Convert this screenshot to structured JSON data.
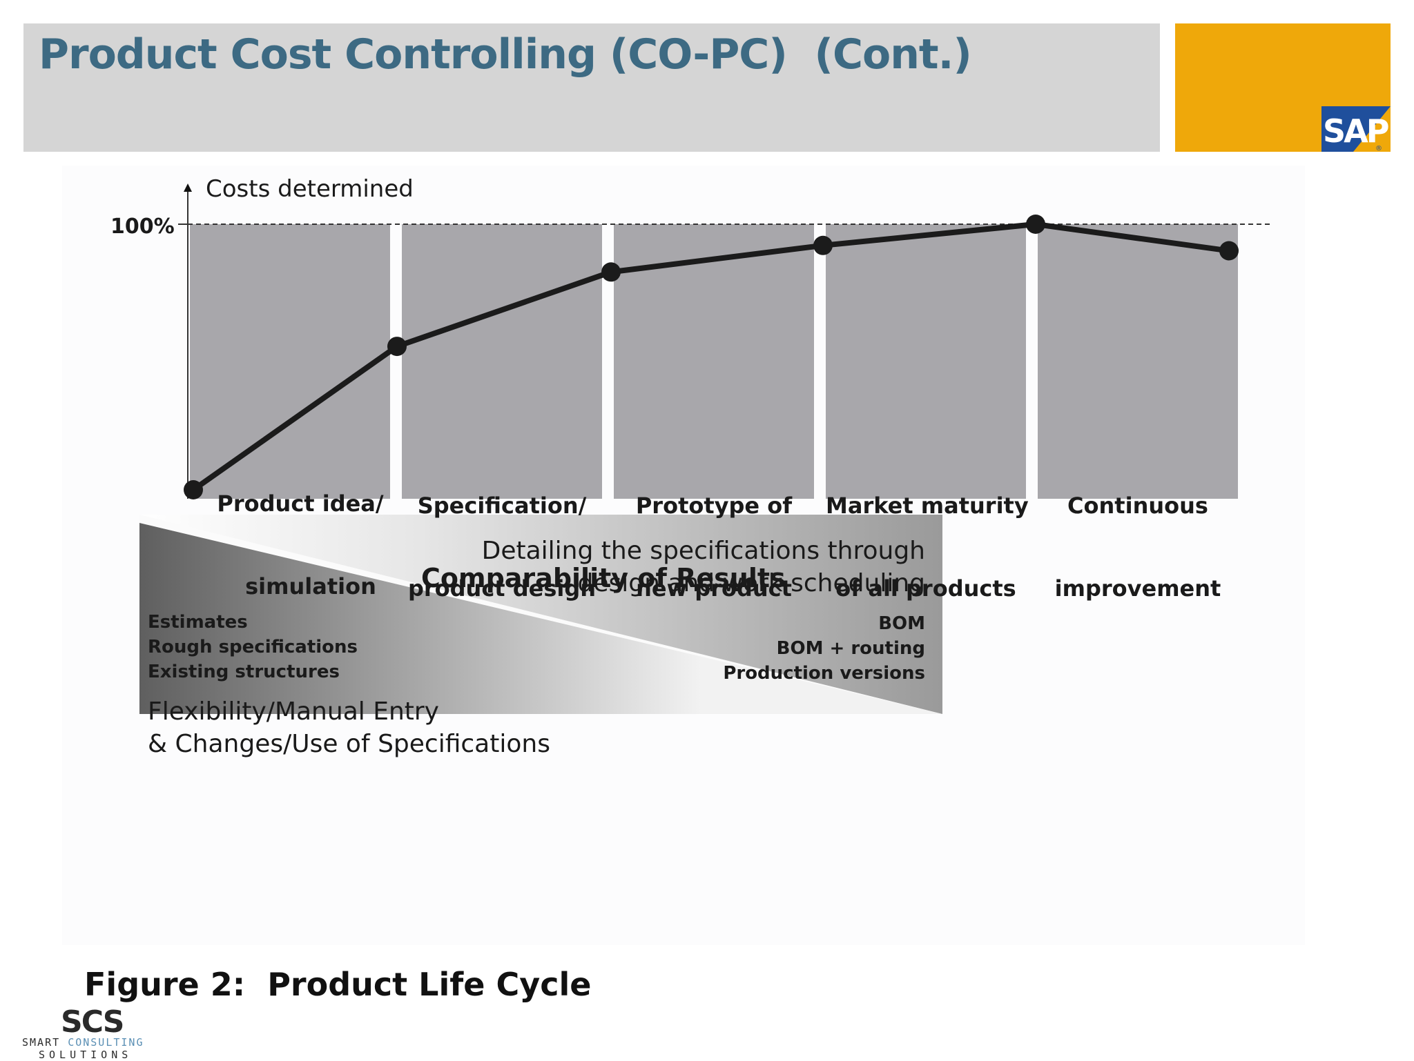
{
  "slide": {
    "title": "Product Cost Controlling (CO-PC)  (Cont.)",
    "brand_logo": "SAP",
    "colors": {
      "title_text": "#3d6a83",
      "title_bar": "#d5d5d5",
      "brand_block": "#efa80a",
      "sap_blue": "#1f4f9c"
    }
  },
  "diagram": {
    "y_axis_label": "Costs determined",
    "hundred_percent_label": "100%",
    "curve_levels_percent": [
      0,
      54,
      82,
      92,
      100,
      90
    ],
    "stages": [
      {
        "line1": "Product idea/",
        "line2": "simulation"
      },
      {
        "line1": "Specification/",
        "line2": "product design"
      },
      {
        "line1": "Prototype of",
        "line2": "new product"
      },
      {
        "line1": "Market maturity",
        "line2": "of all products"
      },
      {
        "line1": "Continuous",
        "line2": "improvement"
      }
    ],
    "cycle_label": "Comparability of Results",
    "right_heading_line1": "Detailing the specifications through",
    "right_heading_line2": "design and work scheduling",
    "right_items": [
      "BOM",
      "BOM + routing",
      "Production versions"
    ],
    "left_items": [
      "Estimates",
      "Rough specifications",
      "Existing structures"
    ],
    "left_heading_line1": "Flexibility/Manual Entry",
    "left_heading_line2": "& Changes/Use of Specifications"
  },
  "figure_caption": "Figure 2:  Product Life Cycle",
  "footer_logo": {
    "letters": "SCS",
    "line1_a": "SMART ",
    "line1_b": "CONSULTING",
    "line2": "SOLUTIONS"
  }
}
